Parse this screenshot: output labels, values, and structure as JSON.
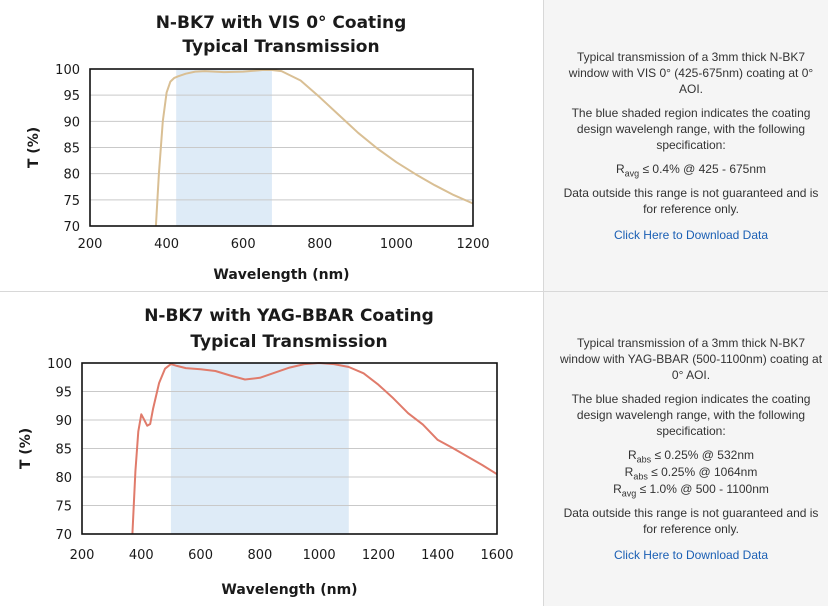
{
  "chart_data": [
    {
      "type": "line",
      "title": "N-BK7 with VIS 0° Coating",
      "subtitle": "Typical Transmission",
      "xlabel": "Wavelength (nm)",
      "ylabel": "T (%)",
      "xlim": [
        200,
        1200
      ],
      "ylim": [
        70,
        100
      ],
      "xticks": [
        200,
        400,
        600,
        800,
        1000,
        1200
      ],
      "yticks": [
        70,
        75,
        80,
        85,
        90,
        95,
        100
      ],
      "grid": "horizontal",
      "line_color": "#d9bf94",
      "shade_color": "#deebf7",
      "shaded_region": [
        425,
        675
      ],
      "series": [
        {
          "x": [
            372,
            380,
            390,
            400,
            410,
            420,
            430,
            450,
            475,
            500,
            550,
            600,
            650,
            675,
            700,
            750,
            800,
            850,
            900,
            950,
            1000,
            1050,
            1100,
            1150,
            1200
          ],
          "y": [
            70,
            80,
            90,
            95.5,
            97.6,
            98.3,
            98.6,
            99.1,
            99.5,
            99.6,
            99.4,
            99.5,
            99.8,
            99.8,
            99.6,
            97.8,
            94.6,
            91.2,
            87.8,
            84.8,
            82.2,
            79.9,
            77.8,
            75.9,
            74.3
          ]
        }
      ]
    },
    {
      "type": "line",
      "title": "N-BK7 with YAG-BBAR Coating",
      "subtitle": "Typical Transmission",
      "xlabel": "Wavelength (nm)",
      "ylabel": "T (%)",
      "xlim": [
        200,
        1600
      ],
      "ylim": [
        70,
        100
      ],
      "xticks": [
        200,
        400,
        600,
        800,
        1000,
        1200,
        1400,
        1600
      ],
      "yticks": [
        70,
        75,
        80,
        85,
        90,
        95,
        100
      ],
      "grid": "horizontal",
      "line_color": "#e07b6b",
      "shade_color": "#deebf7",
      "shaded_region": [
        500,
        1100
      ],
      "series": [
        {
          "x": [
            370,
            380,
            390,
            400,
            410,
            420,
            430,
            440,
            460,
            480,
            500,
            520,
            550,
            600,
            650,
            700,
            750,
            800,
            850,
            900,
            950,
            1000,
            1050,
            1100,
            1150,
            1200,
            1250,
            1300,
            1350,
            1400,
            1450,
            1500,
            1550,
            1600
          ],
          "y": [
            70,
            81,
            88,
            91,
            90,
            89,
            89.3,
            92,
            96.5,
            99,
            99.8,
            99.5,
            99.1,
            98.9,
            98.6,
            97.8,
            97.1,
            97.4,
            98.3,
            99.2,
            99.8,
            100,
            99.8,
            99.3,
            98.2,
            96.2,
            93.8,
            91.2,
            89.2,
            86.5,
            85.1,
            83.6,
            82.1,
            80.5
          ]
        }
      ]
    }
  ],
  "info": [
    {
      "desc": "Typical transmission of a 3mm thick N-BK7 window with VIS 0° (425-675nm) coating at 0° AOI.",
      "region_note": "The blue shaded region indicates the coating design wavelengh range, with the following specification:",
      "specs": [
        {
          "sym": "R",
          "sub": "avg",
          "text": " ≤ 0.4% @ 425 - 675nm"
        }
      ],
      "disclaimer": "Data outside this range is not guaranteed and is for reference only.",
      "link": "Click Here to Download Data"
    },
    {
      "desc": "Typical transmission of a 3mm thick N-BK7 window with YAG-BBAR (500-1100nm) coating at 0° AOI.",
      "region_note": "The blue shaded region indicates the coating design wavelengh range, with the following specification:",
      "specs": [
        {
          "sym": "R",
          "sub": "abs",
          "text": " ≤ 0.25% @ 532nm"
        },
        {
          "sym": "R",
          "sub": "abs",
          "text": " ≤ 0.25% @ 1064nm"
        },
        {
          "sym": "R",
          "sub": "avg",
          "text": " ≤ 1.0% @ 500 - 1100nm"
        }
      ],
      "disclaimer": "Data outside this range is not guaranteed and is for reference only.",
      "link": "Click Here to Download Data"
    }
  ]
}
